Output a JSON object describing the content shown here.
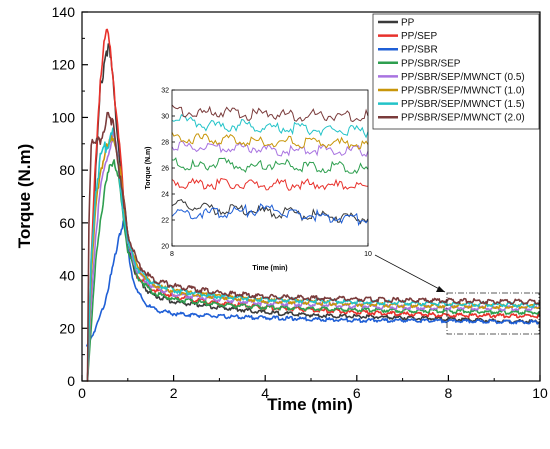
{
  "chart_data": {
    "type": "line",
    "xlabel": "Time (min)",
    "ylabel": "Torque (N.m)",
    "xlim": [
      0,
      10
    ],
    "ylim": [
      0,
      140
    ],
    "xticks": [
      "0",
      "2",
      "4",
      "6",
      "8",
      "10"
    ],
    "yticks": [
      "0",
      "20",
      "40",
      "60",
      "80",
      "100",
      "120",
      "140"
    ],
    "grid": false,
    "legend_position": "top-right",
    "series": [
      {
        "name": "PP",
        "color": "#3a3a3a",
        "x": [
          0.12,
          0.2,
          0.3,
          0.4,
          0.5,
          0.55,
          0.6,
          0.65,
          0.7,
          0.8,
          0.9,
          1.0,
          1.1,
          1.2,
          1.5,
          2,
          3,
          4,
          5,
          6,
          7,
          8,
          9,
          10
        ],
        "y": [
          0,
          40,
          80,
          110,
          123,
          127,
          124,
          118,
          108,
          90,
          70,
          55,
          45,
          39,
          33,
          30,
          28,
          26,
          25,
          24.5,
          24,
          23.5,
          22.8,
          22.5
        ]
      },
      {
        "name": "PP/SEP",
        "color": "#e8312b",
        "x": [
          0.12,
          0.2,
          0.3,
          0.4,
          0.5,
          0.55,
          0.6,
          0.65,
          0.7,
          0.8,
          0.9,
          1.0,
          1.1,
          1.2,
          1.5,
          2,
          3,
          4,
          5,
          6,
          7,
          8,
          9,
          10
        ],
        "y": [
          0,
          45,
          85,
          115,
          128,
          133,
          130,
          122,
          112,
          92,
          72,
          56,
          46,
          40,
          35,
          32,
          29.5,
          28,
          27,
          26,
          25.5,
          25,
          24.8,
          24.7
        ]
      },
      {
        "name": "PP/SBR",
        "color": "#1f5fd6",
        "x": [
          0.1,
          0.3,
          0.5,
          0.7,
          0.8,
          0.9,
          0.95,
          1.0,
          1.1,
          1.2,
          1.4,
          1.6,
          2,
          3,
          4,
          5,
          6,
          7,
          8,
          9,
          10
        ],
        "y": [
          13,
          20,
          30,
          45,
          55,
          60,
          56,
          50,
          40,
          34,
          29,
          27,
          25.5,
          24.5,
          24,
          23.5,
          23,
          23,
          22.8,
          22.5,
          22.3
        ]
      },
      {
        "name": "PP/SBR/SEP",
        "color": "#2e9f4f",
        "x": [
          0.12,
          0.2,
          0.3,
          0.4,
          0.5,
          0.6,
          0.7,
          0.8,
          0.9,
          1.0,
          1.2,
          1.5,
          2,
          3,
          4,
          5,
          6,
          7,
          8,
          9,
          10
        ],
        "y": [
          0,
          20,
          45,
          62,
          72,
          80,
          85,
          76,
          62,
          50,
          40,
          34,
          31,
          29,
          28,
          27.5,
          27,
          26.8,
          26.5,
          26.2,
          26
        ]
      },
      {
        "name": "PP/SBR/SEP/MWNCT (0.5)",
        "color": "#a873e0",
        "x": [
          0.12,
          0.2,
          0.3,
          0.4,
          0.5,
          0.6,
          0.7,
          0.8,
          0.9,
          1.0,
          1.2,
          1.5,
          2,
          3,
          4,
          5,
          6,
          7,
          8,
          9,
          10
        ],
        "y": [
          0,
          30,
          55,
          72,
          82,
          88,
          92,
          82,
          66,
          52,
          42,
          36,
          33,
          31,
          29.5,
          29,
          28.5,
          28,
          27.8,
          27.6,
          27.5
        ]
      },
      {
        "name": "PP/SBR/SEP/MWNCT (1.0)",
        "color": "#c8960a",
        "x": [
          0.12,
          0.2,
          0.3,
          0.4,
          0.5,
          0.6,
          0.7,
          0.8,
          0.9,
          1.0,
          1.2,
          1.5,
          2,
          3,
          4,
          5,
          6,
          7,
          8,
          9,
          10
        ],
        "y": [
          0,
          40,
          65,
          80,
          86,
          90,
          93,
          84,
          68,
          54,
          43,
          37,
          34,
          32,
          30.5,
          29.8,
          29.2,
          28.8,
          28.5,
          28.3,
          28.2
        ]
      },
      {
        "name": "PP/SBR/SEP/MWNCT (1.5)",
        "color": "#22c3c8",
        "x": [
          0.12,
          0.2,
          0.3,
          0.4,
          0.5,
          0.6,
          0.65,
          0.7,
          0.8,
          0.9,
          1.0,
          1.2,
          1.5,
          2,
          3,
          4,
          5,
          6,
          7,
          8,
          9,
          10
        ],
        "y": [
          0,
          45,
          72,
          84,
          88,
          92,
          96,
          94,
          80,
          65,
          53,
          43,
          37.5,
          34.5,
          32,
          31,
          30.5,
          30,
          29.6,
          29.3,
          29,
          28.8
        ]
      },
      {
        "name": "PP/SBR/SEP/MWNCT (2.0)",
        "color": "#7a3b3b",
        "x": [
          0.12,
          0.15,
          0.2,
          0.25,
          0.3,
          0.4,
          0.5,
          0.55,
          0.6,
          0.7,
          0.8,
          0.9,
          1.0,
          1.2,
          1.5,
          2,
          3,
          4,
          5,
          6,
          7,
          8,
          9,
          10
        ],
        "y": [
          0,
          60,
          92,
          88,
          90,
          92,
          96,
          100,
          98,
          96,
          82,
          68,
          56,
          45,
          39,
          36,
          33.5,
          32,
          31.5,
          31,
          30.7,
          30.4,
          30.2,
          30
        ]
      }
    ],
    "inset": {
      "xlabel": "Time (min)",
      "ylabel": "Torque (N.m)",
      "xlim": [
        8,
        10
      ],
      "ylim": [
        20,
        32
      ],
      "xticks": [
        "8",
        "10"
      ],
      "yticks": [
        "20",
        "22",
        "24",
        "26",
        "28",
        "30",
        "32"
      ],
      "series": [
        {
          "name": "PP",
          "color": "#3a3a3a",
          "x": [
            8,
            8.25,
            8.5,
            8.75,
            9,
            9.25,
            9.5,
            9.75,
            10
          ],
          "y": [
            23.2,
            23.0,
            22.8,
            22.7,
            22.6,
            22.5,
            22.3,
            22.2,
            22.1
          ]
        },
        {
          "name": "PP/SEP",
          "color": "#e8312b",
          "x": [
            8,
            8.25,
            8.5,
            8.75,
            9,
            9.25,
            9.5,
            9.75,
            10
          ],
          "y": [
            24.9,
            24.8,
            24.8,
            24.7,
            24.7,
            24.7,
            24.7,
            24.6,
            24.6
          ]
        },
        {
          "name": "PP/SBR",
          "color": "#1f5fd6",
          "x": [
            8,
            8.25,
            8.5,
            8.75,
            9,
            9.25,
            9.5,
            9.75,
            10
          ],
          "y": [
            22.6,
            22.5,
            22.6,
            22.7,
            22.9,
            22.4,
            22.3,
            22.2,
            22.0
          ]
        },
        {
          "name": "PP/SBR/SEP",
          "color": "#2e9f4f",
          "x": [
            8,
            8.25,
            8.5,
            8.75,
            9,
            9.25,
            9.5,
            9.75,
            10
          ],
          "y": [
            26.4,
            26.1,
            26.5,
            26.0,
            26.3,
            26.2,
            26.0,
            26.1,
            25.9
          ]
        },
        {
          "name": "PP/SBR/SEP/MWNCT (0.5)",
          "color": "#a873e0",
          "x": [
            8,
            8.25,
            8.5,
            8.75,
            9,
            9.25,
            9.5,
            9.75,
            10
          ],
          "y": [
            27.8,
            27.6,
            27.5,
            27.6,
            27.4,
            27.3,
            27.4,
            27.2,
            27.3
          ]
        },
        {
          "name": "PP/SBR/SEP/MWNCT (1.0)",
          "color": "#c8960a",
          "x": [
            8,
            8.25,
            8.5,
            8.75,
            9,
            9.25,
            9.5,
            9.75,
            10
          ],
          "y": [
            28.3,
            28.2,
            28.2,
            28.1,
            28.0,
            28.0,
            27.9,
            27.9,
            27.8
          ]
        },
        {
          "name": "PP/SBR/SEP/MWNCT (1.5)",
          "color": "#22c3c8",
          "x": [
            8,
            8.25,
            8.5,
            8.75,
            9,
            9.25,
            9.5,
            9.75,
            10
          ],
          "y": [
            29.8,
            29.4,
            29.2,
            29.3,
            29.0,
            29.1,
            28.9,
            29.0,
            28.8
          ]
        },
        {
          "name": "PP/SBR/SEP/MWNCT (2.0)",
          "color": "#7a3b3b",
          "x": [
            8,
            8.25,
            8.5,
            8.75,
            9,
            9.25,
            9.5,
            9.75,
            10
          ],
          "y": [
            30.5,
            30.2,
            30.3,
            30.1,
            30.2,
            30.0,
            30.1,
            30.0,
            30.0
          ]
        }
      ]
    }
  }
}
